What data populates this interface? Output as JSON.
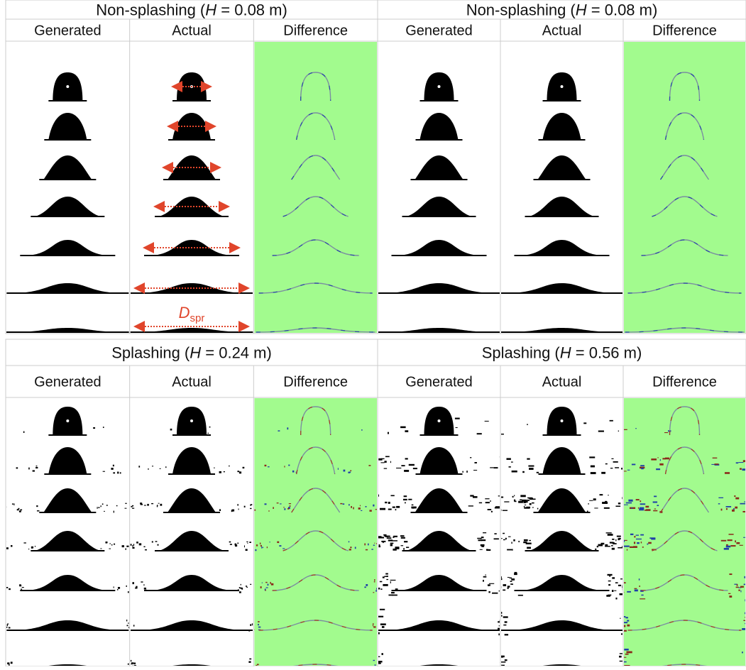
{
  "panels": [
    {
      "title": {
        "pre": "Non-splashing (",
        "var": "H",
        "post": " = 0.08 m)"
      },
      "columns": [
        "Generated",
        "Actual",
        "Difference"
      ]
    },
    {
      "title": {
        "pre": "Non-splashing (",
        "var": "H",
        "post": " = 0.08 m)"
      },
      "columns": [
        "Generated",
        "Actual",
        "Difference"
      ]
    },
    {
      "title": {
        "pre": "Splashing (",
        "var": "H",
        "post": " = 0.24 m)"
      },
      "columns": [
        "Generated",
        "Actual",
        "Difference"
      ]
    },
    {
      "title": {
        "pre": "Splashing (",
        "var": "H",
        "post": " = 0.56 m)"
      },
      "columns": [
        "Generated",
        "Actual",
        "Difference"
      ]
    }
  ],
  "annotation": {
    "symbol": "D",
    "subscript": "spr"
  }
}
